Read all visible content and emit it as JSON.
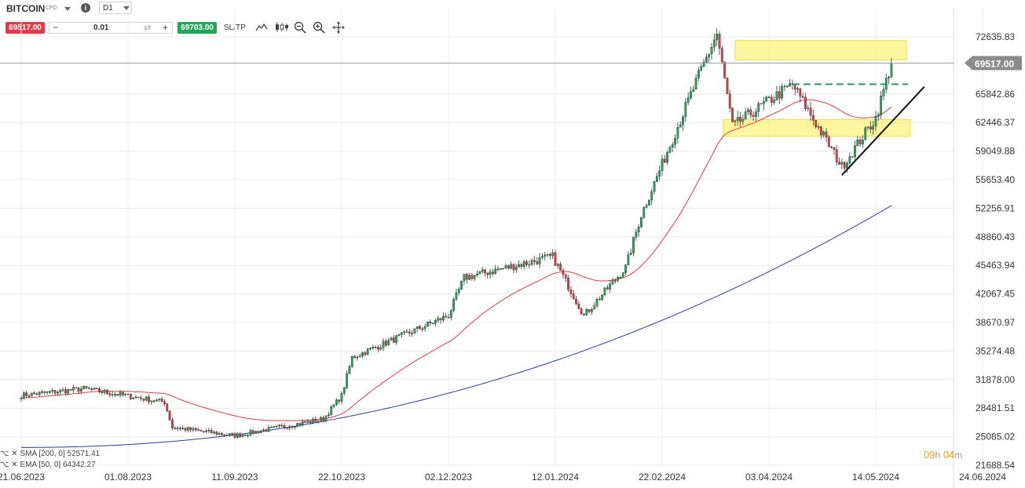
{
  "header": {
    "symbol": "BITCOIN",
    "symbol_type": "CFD",
    "timeframe": "D1",
    "info_icon": "info-icon"
  },
  "trade_bar": {
    "sell_price": "69517.00",
    "buy_price": "69703.00",
    "volume": "0.01",
    "minus": "−",
    "plus": "+",
    "swap": "⇄",
    "sltp": "SL/TP",
    "tools": [
      "line-chart-icon",
      "candle-chart-icon",
      "zoom-out-icon",
      "zoom-in-icon",
      "crosshair-icon"
    ]
  },
  "legend": {
    "sma": "SMA [200, 0] 52571.41",
    "ema": "EMA [50, 0] 64342.27"
  },
  "timer": {
    "hours": "09",
    "h": "h",
    "minutes": "04",
    "m": "m"
  },
  "colors": {
    "up": "#26a65b",
    "down": "#e03a46",
    "sma": "#2e3d9c",
    "ema": "#e03a46",
    "zone": "#fff36b",
    "price_tag": "#8c8c8c"
  },
  "chart_data": {
    "type": "candlestick",
    "title": "",
    "ylim": [
      21688.54,
      74000
    ],
    "y_ticks": [
      "72635.83",
      "65842.86",
      "62446.37",
      "59049.88",
      "55653.40",
      "52256.91",
      "48860.43",
      "45463.94",
      "42067.45",
      "38670.97",
      "35274.48",
      "31878.00",
      "28481.51",
      "25085.02",
      "21688.54"
    ],
    "x_ticks": [
      "21.06.2023",
      "01.08.2023",
      "11.09.2023",
      "22.10.2023",
      "02.12.2023",
      "12.01.2024",
      "22.02.2024",
      "03.04.2024",
      "14.05.2024",
      "24.06.2024"
    ],
    "current_price": "69517.00",
    "key_points": [
      {
        "date": "21.06.2023",
        "close": 30000
      },
      {
        "date": "15.07.2023",
        "close": 30800
      },
      {
        "date": "15.08.2023",
        "close": 29200
      },
      {
        "date": "18.08.2023",
        "close": 26200
      },
      {
        "date": "11.09.2023",
        "close": 25200
      },
      {
        "date": "15.10.2023",
        "close": 27200
      },
      {
        "date": "22.10.2023",
        "close": 30000
      },
      {
        "date": "26.10.2023",
        "close": 34500
      },
      {
        "date": "02.12.2023",
        "close": 39500
      },
      {
        "date": "08.12.2023",
        "close": 44000
      },
      {
        "date": "11.01.2024",
        "close": 46500
      },
      {
        "date": "23.01.2024",
        "close": 39500
      },
      {
        "date": "08.02.2024",
        "close": 45200
      },
      {
        "date": "14.02.2024",
        "close": 51500
      },
      {
        "date": "05.03.2024",
        "close": 66500
      },
      {
        "date": "14.03.2024",
        "close": 73000
      },
      {
        "date": "20.03.2024",
        "close": 62000
      },
      {
        "date": "12.04.2024",
        "close": 67000
      },
      {
        "date": "01.05.2024",
        "close": 57200
      },
      {
        "date": "14.05.2024",
        "close": 63000
      },
      {
        "date": "20.05.2024",
        "close": 69517
      }
    ],
    "indicators": [
      {
        "name": "SMA [200, 0]",
        "value": 52571.41
      },
      {
        "name": "EMA [50, 0]",
        "value": 64342.27
      }
    ],
    "annotations": [
      {
        "type": "resistance-zone",
        "from": 69900,
        "to": 72200
      },
      {
        "type": "support-zone",
        "from": 60800,
        "to": 62800
      },
      {
        "type": "dashed-level",
        "value": 67000
      },
      {
        "type": "rising-trendline",
        "from": {
          "date": "01.05.2024",
          "value": 56200
        },
        "to": {
          "date": "26.05.2024",
          "value": 66700
        }
      }
    ]
  }
}
